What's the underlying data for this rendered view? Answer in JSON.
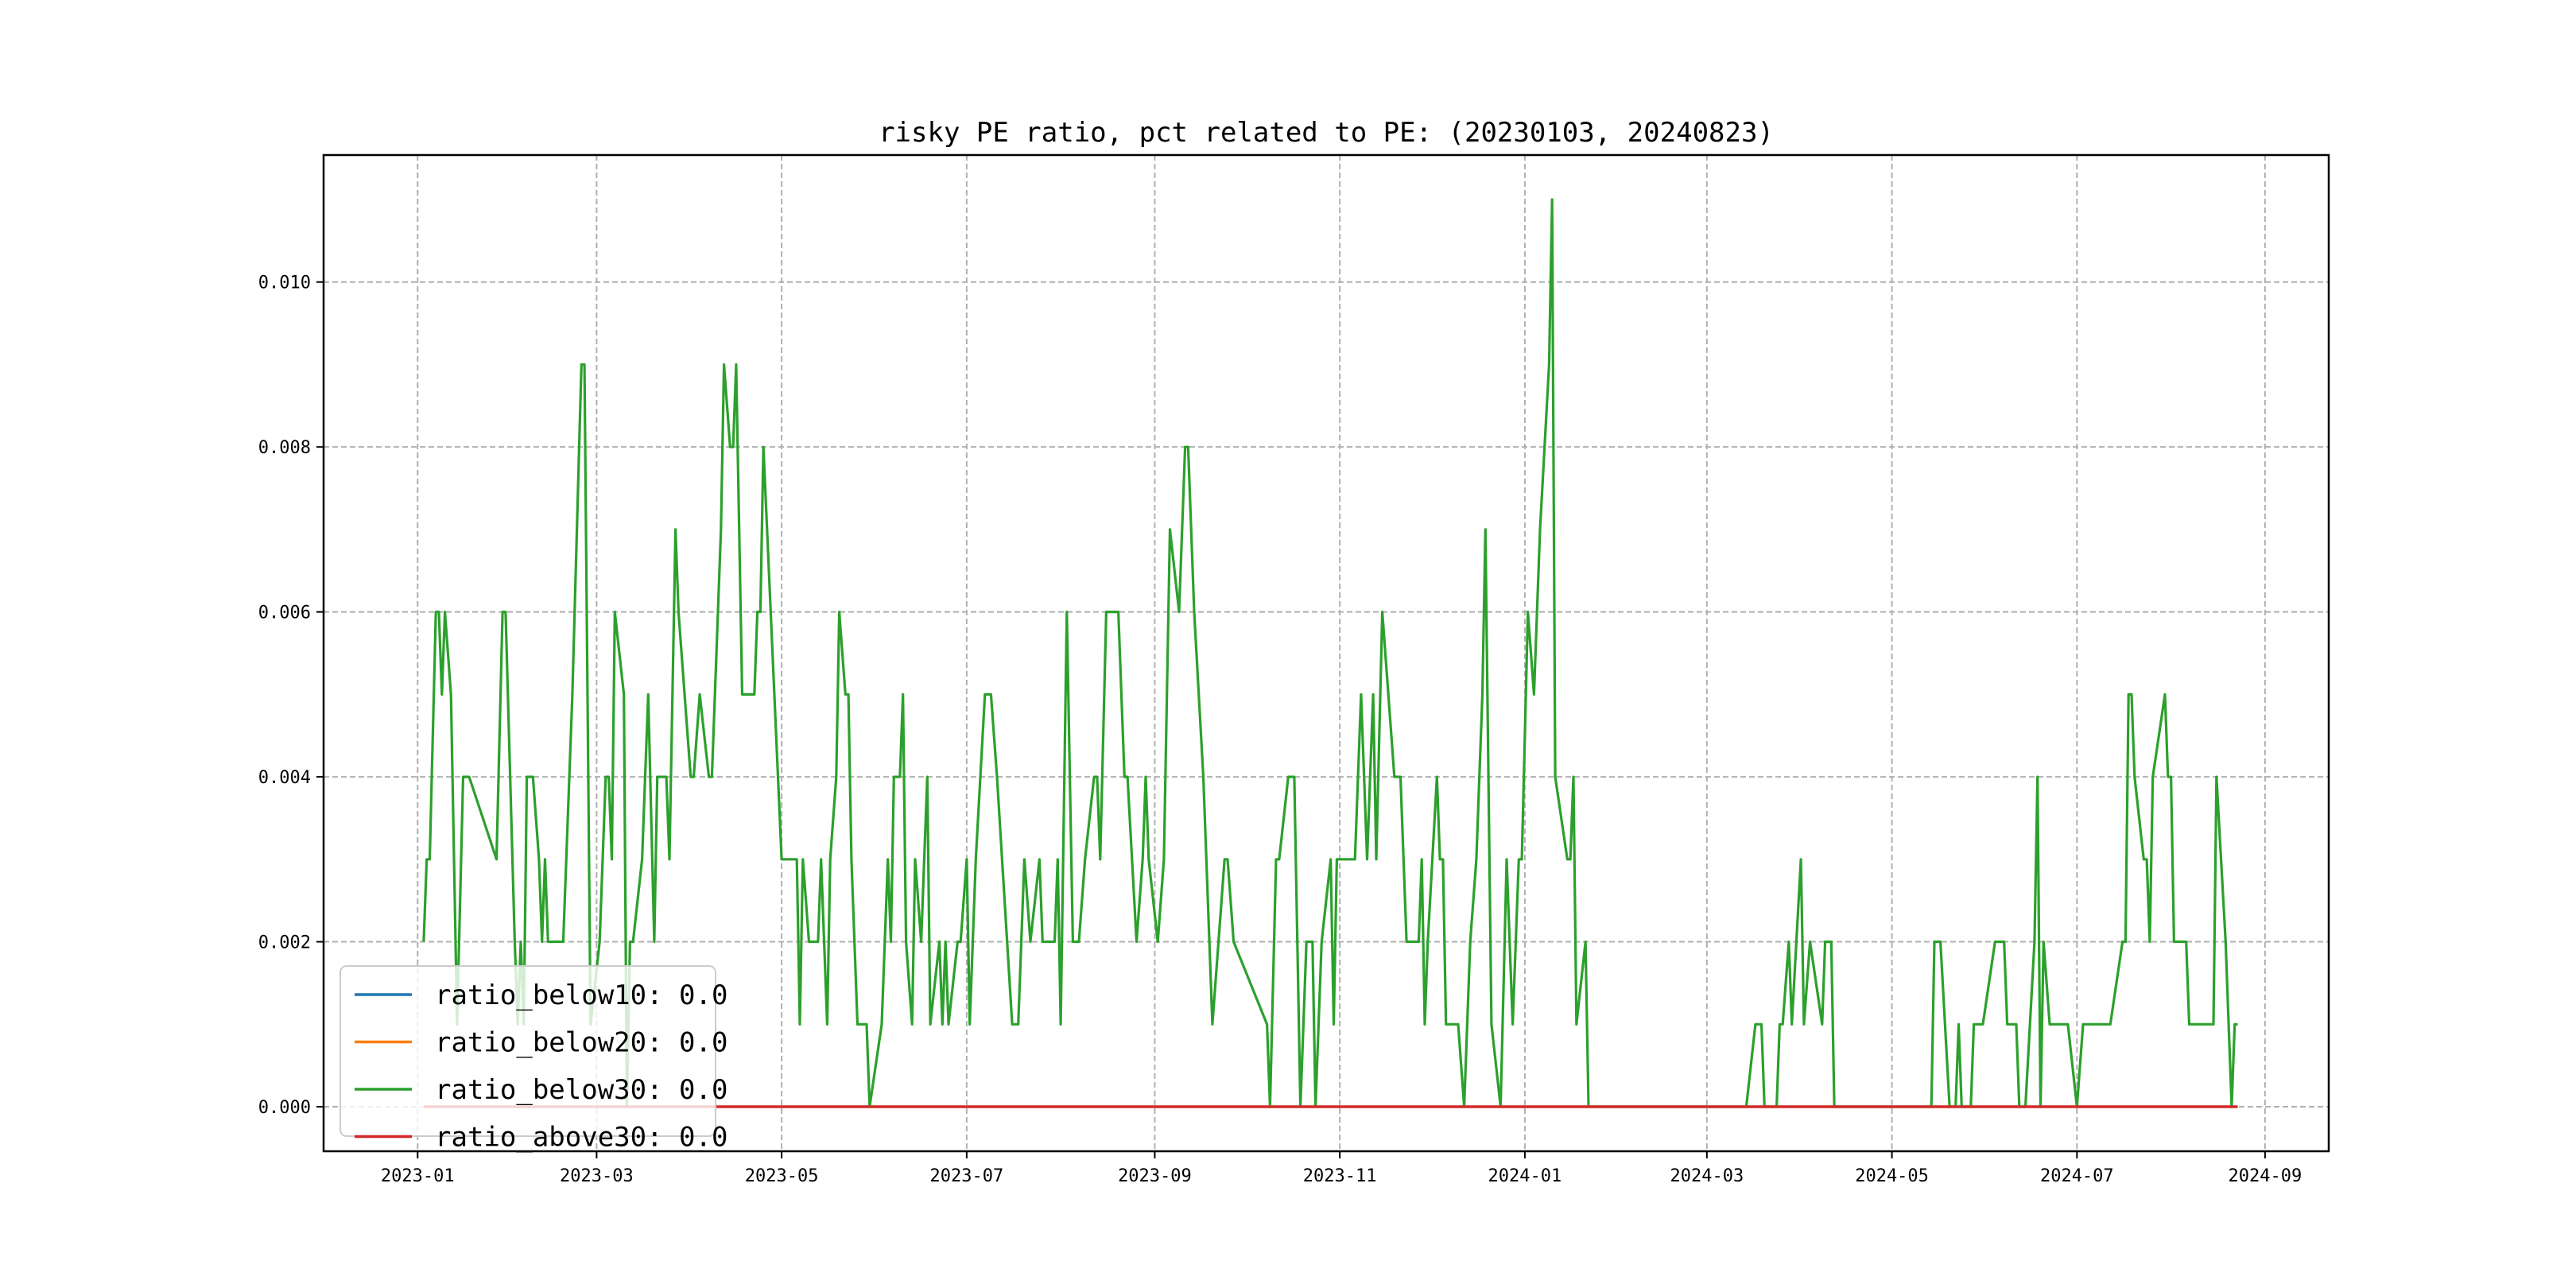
{
  "chart_data": {
    "type": "line",
    "title": "risky PE ratio, pct related to PE: (20230103, 20240823)",
    "xlabel": "",
    "ylabel": "",
    "x_unit": "days since 2023-01-01",
    "xlim": [
      -31,
      630
    ],
    "ylim": [
      -0.00054,
      0.01154
    ],
    "grid": true,
    "legend_position": "lower-left",
    "x_ticks": [
      {
        "label": "2023-01",
        "day": 0
      },
      {
        "label": "2023-03",
        "day": 59
      },
      {
        "label": "2023-05",
        "day": 120
      },
      {
        "label": "2023-07",
        "day": 181
      },
      {
        "label": "2023-09",
        "day": 243
      },
      {
        "label": "2023-11",
        "day": 304
      },
      {
        "label": "2024-01",
        "day": 365
      },
      {
        "label": "2024-03",
        "day": 425
      },
      {
        "label": "2024-05",
        "day": 486
      },
      {
        "label": "2024-07",
        "day": 547
      },
      {
        "label": "2024-09",
        "day": 609
      }
    ],
    "y_ticks": [
      {
        "label": "0.000",
        "value": 0
      },
      {
        "label": "0.002",
        "value": 0.002
      },
      {
        "label": "0.004",
        "value": 0.004
      },
      {
        "label": "0.006",
        "value": 0.006
      },
      {
        "label": "0.008",
        "value": 0.008
      },
      {
        "label": "0.010",
        "value": 0.01
      }
    ],
    "x_range_days": [
      2,
      600
    ],
    "series": [
      {
        "name": "ratio_below10",
        "legend": "ratio_below10: 0.0",
        "color": "#1f77b4",
        "constant": 0
      },
      {
        "name": "ratio_below20",
        "legend": "ratio_below20: 0.0",
        "color": "#ff7f0e",
        "constant": 0
      },
      {
        "name": "ratio_below30",
        "legend": "ratio_below30: 0.0",
        "color": "#2ca02c",
        "x": [
          2,
          3,
          4,
          6,
          7,
          8,
          9,
          11,
          13,
          15,
          17,
          26,
          28,
          29,
          32,
          33,
          34,
          35,
          36,
          38,
          40,
          41,
          42,
          43,
          48,
          51,
          54,
          55,
          57,
          60,
          62,
          63,
          64,
          65,
          68,
          69,
          70,
          71,
          74,
          76,
          78,
          79,
          82,
          83,
          85,
          86,
          90,
          91,
          93,
          96,
          97,
          100,
          101,
          103,
          104,
          105,
          107,
          111,
          112,
          113,
          114,
          120,
          125,
          126,
          127,
          129,
          132,
          133,
          135,
          136,
          138,
          139,
          141,
          142,
          143,
          145,
          148,
          149,
          153,
          155,
          156,
          157,
          159,
          160,
          161,
          163,
          164,
          166,
          168,
          169,
          172,
          173,
          174,
          175,
          178,
          179,
          181,
          182,
          184,
          187,
          189,
          191,
          196,
          198,
          200,
          202,
          205,
          206,
          210,
          211,
          212,
          214,
          216,
          218,
          220,
          223,
          224,
          225,
          227,
          231,
          233,
          234,
          237,
          239,
          240,
          241,
          244,
          246,
          248,
          251,
          253,
          254,
          256,
          259,
          262,
          264,
          266,
          267,
          269,
          280,
          281,
          283,
          284,
          287,
          289,
          291,
          293,
          295,
          296,
          298,
          301,
          302,
          303,
          309,
          311,
          313,
          315,
          316,
          318,
          322,
          324,
          325,
          326,
          330,
          331,
          332,
          333,
          336,
          337,
          338,
          339,
          343,
          345,
          347,
          349,
          351,
          352,
          354,
          357,
          359,
          361,
          363,
          364,
          366,
          368,
          370,
          373,
          374,
          375,
          379,
          380,
          381,
          382,
          385,
          386,
          438,
          441,
          443,
          444,
          448,
          449,
          450,
          452,
          453,
          456,
          457,
          459,
          463,
          464,
          466,
          467,
          499,
          500,
          502,
          505,
          507,
          508,
          509,
          512,
          513,
          516,
          520,
          523,
          524,
          527,
          528,
          530,
          533,
          534,
          535,
          536,
          538,
          544,
          547,
          549,
          558,
          562,
          563,
          564,
          565,
          566,
          569,
          570,
          571,
          572,
          576,
          577,
          578,
          579,
          583,
          584,
          592,
          593,
          596,
          598,
          599,
          600
        ],
        "y": [
          0.002,
          0.003,
          0.003,
          0.006,
          0.006,
          0.005,
          0.006,
          0.005,
          0.001,
          0.004,
          0.004,
          0.003,
          0.006,
          0.006,
          0.002,
          0.001,
          0.002,
          0.001,
          0.004,
          0.004,
          0.003,
          0.002,
          0.003,
          0.002,
          0.002,
          0.005,
          0.009,
          0.009,
          0.001,
          0.002,
          0.004,
          0.004,
          0.003,
          0.006,
          0.005,
          0.0,
          0.002,
          0.002,
          0.003,
          0.005,
          0.002,
          0.004,
          0.004,
          0.003,
          0.007,
          0.006,
          0.004,
          0.004,
          0.005,
          0.004,
          0.004,
          0.007,
          0.009,
          0.008,
          0.008,
          0.009,
          0.005,
          0.005,
          0.006,
          0.006,
          0.008,
          0.003,
          0.003,
          0.001,
          0.003,
          0.002,
          0.002,
          0.003,
          0.001,
          0.003,
          0.004,
          0.006,
          0.005,
          0.005,
          0.003,
          0.001,
          0.001,
          0.0,
          0.001,
          0.003,
          0.002,
          0.004,
          0.004,
          0.005,
          0.002,
          0.001,
          0.003,
          0.002,
          0.004,
          0.001,
          0.002,
          0.001,
          0.002,
          0.001,
          0.002,
          0.002,
          0.003,
          0.001,
          0.003,
          0.005,
          0.005,
          0.004,
          0.001,
          0.001,
          0.003,
          0.002,
          0.003,
          0.002,
          0.002,
          0.003,
          0.001,
          0.006,
          0.002,
          0.002,
          0.003,
          0.004,
          0.004,
          0.003,
          0.006,
          0.006,
          0.004,
          0.004,
          0.002,
          0.003,
          0.004,
          0.003,
          0.002,
          0.003,
          0.007,
          0.006,
          0.008,
          0.008,
          0.006,
          0.004,
          0.001,
          0.002,
          0.003,
          0.003,
          0.002,
          0.001,
          0.0,
          0.003,
          0.003,
          0.004,
          0.004,
          0.0,
          0.002,
          0.002,
          0.0,
          0.002,
          0.003,
          0.001,
          0.003,
          0.003,
          0.005,
          0.003,
          0.005,
          0.003,
          0.006,
          0.004,
          0.004,
          0.003,
          0.002,
          0.002,
          0.003,
          0.001,
          0.002,
          0.004,
          0.003,
          0.003,
          0.001,
          0.001,
          0.0,
          0.002,
          0.003,
          0.005,
          0.007,
          0.001,
          0.0,
          0.003,
          0.001,
          0.003,
          0.003,
          0.006,
          0.005,
          0.007,
          0.009,
          0.011,
          0.004,
          0.003,
          0.003,
          0.004,
          0.001,
          0.002,
          0.0,
          0.0,
          0.001,
          0.001,
          0.0,
          0.0,
          0.001,
          0.001,
          0.002,
          0.001,
          0.003,
          0.001,
          0.002,
          0.001,
          0.002,
          0.002,
          0.0,
          0.0,
          0.002,
          0.002,
          0.0,
          0.0,
          0.001,
          0.0,
          0.0,
          0.001,
          0.001,
          0.002,
          0.002,
          0.001,
          0.001,
          0.0,
          0.0,
          0.002,
          0.004,
          0.0,
          0.002,
          0.001,
          0.001,
          0.0,
          0.001,
          0.001,
          0.002,
          0.002,
          0.005,
          0.005,
          0.004,
          0.003,
          0.003,
          0.002,
          0.004,
          0.005,
          0.004,
          0.004,
          0.002,
          0.002,
          0.001,
          0.001,
          0.004,
          0.002,
          0.0,
          0.001,
          0.001
        ]
      },
      {
        "name": "ratio_above30",
        "legend": "ratio_above30: 0.0",
        "color": "#d62728",
        "constant": 0
      }
    ]
  }
}
